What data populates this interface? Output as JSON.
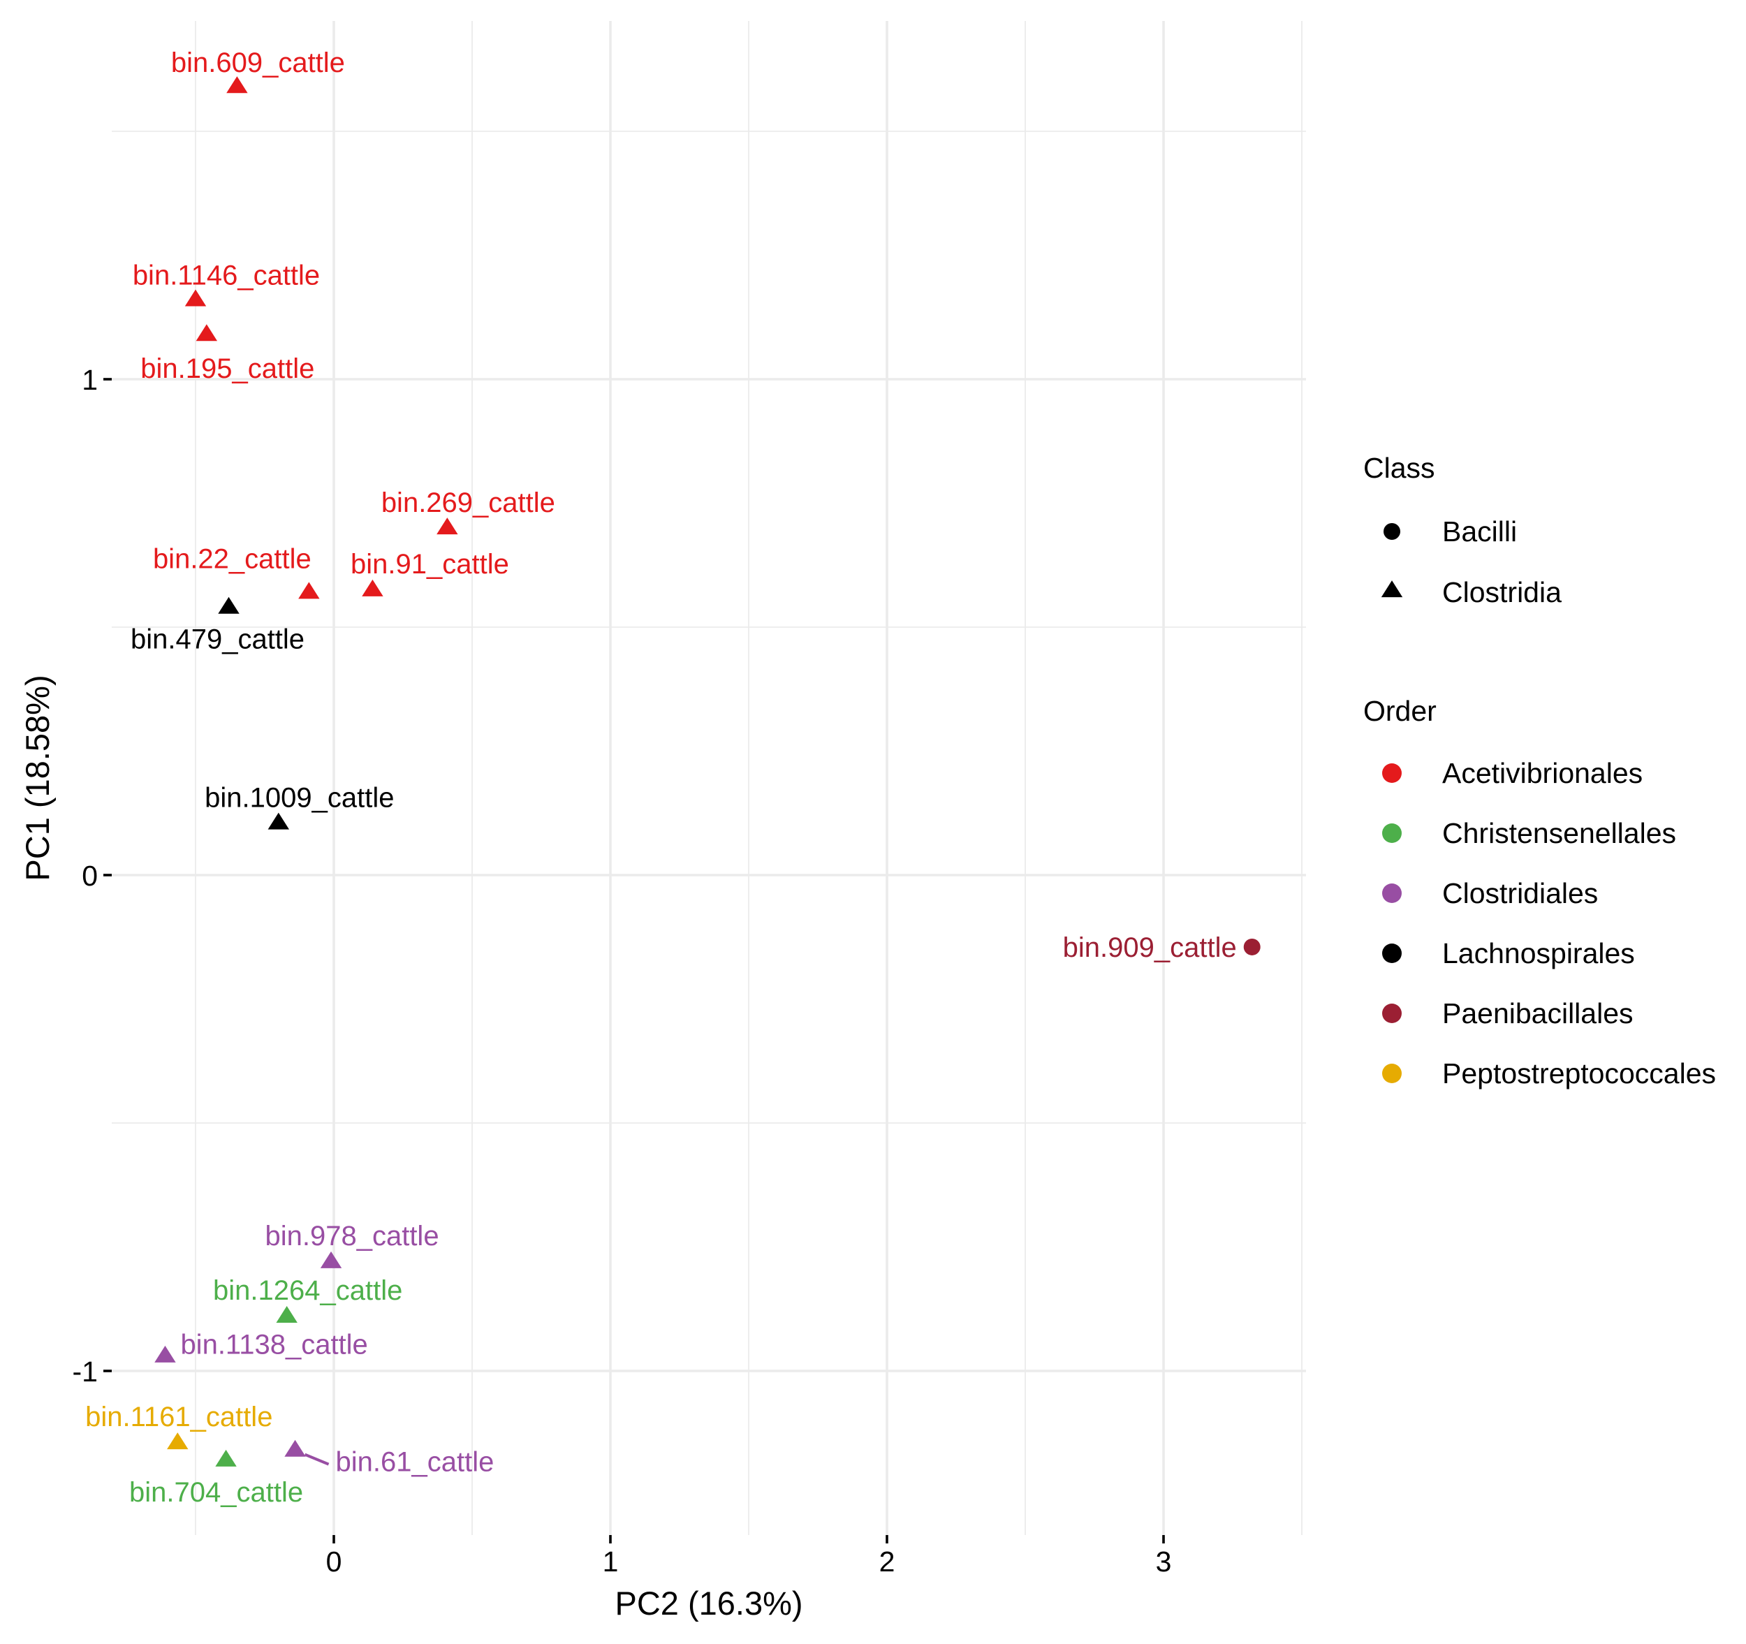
{
  "chart_data": {
    "type": "scatter",
    "title": "",
    "xlabel": "PC2 (16.3%)",
    "ylabel": "PC1 (18.58%)",
    "xlim": [
      -0.8,
      3.52
    ],
    "ylim": [
      -1.33,
      1.72
    ],
    "x_ticks": [
      0,
      1,
      2,
      3
    ],
    "x_tick_labels": [
      "0",
      "1",
      "2",
      "3"
    ],
    "y_ticks": [
      -1,
      0,
      1
    ],
    "y_tick_labels": [
      "-1",
      "0",
      "1"
    ],
    "grid": true,
    "legend_position": "right",
    "legends": [
      {
        "title": "Class",
        "kind": "shape",
        "entries": [
          {
            "label": "Bacilli",
            "shape": "circle",
            "color": "#000000"
          },
          {
            "label": "Clostridia",
            "shape": "triangle",
            "color": "#000000"
          }
        ]
      },
      {
        "title": "Order",
        "kind": "color",
        "entries": [
          {
            "label": "Acetivibrionales",
            "color": "#E41A1C"
          },
          {
            "label": "Christensenellales",
            "color": "#4DAF4A"
          },
          {
            "label": "Clostridiales",
            "color": "#984EA3"
          },
          {
            "label": "Lachnospirales",
            "color": "#000000"
          },
          {
            "label": "Paenibacillales",
            "color": "#9B1F33"
          },
          {
            "label": "Peptostreptococcales",
            "color": "#E6AB02"
          }
        ]
      }
    ],
    "points": [
      {
        "label": "bin.609_cattle",
        "x": -0.35,
        "y": 1.59,
        "class": "Clostridia",
        "order": "Acetivibrionales",
        "label_pos": "above"
      },
      {
        "label": "bin.1146_cattle",
        "x": -0.5,
        "y": 1.16,
        "class": "Clostridia",
        "order": "Acetivibrionales",
        "label_pos": "above"
      },
      {
        "label": "bin.195_cattle",
        "x": -0.46,
        "y": 1.09,
        "class": "Clostridia",
        "order": "Acetivibrionales",
        "label_pos": "below"
      },
      {
        "label": "bin.269_cattle",
        "x": 0.41,
        "y": 0.7,
        "class": "Clostridia",
        "order": "Acetivibrionales",
        "label_pos": "above"
      },
      {
        "label": "bin.22_cattle",
        "x": -0.09,
        "y": 0.57,
        "class": "Clostridia",
        "order": "Acetivibrionales",
        "label_pos": "above-left"
      },
      {
        "label": "bin.91_cattle",
        "x": 0.14,
        "y": 0.575,
        "class": "Clostridia",
        "order": "Acetivibrionales",
        "label_pos": "above"
      },
      {
        "label": "bin.479_cattle",
        "x": -0.38,
        "y": 0.54,
        "class": "Clostridia",
        "order": "Lachnospirales",
        "label_pos": "below"
      },
      {
        "label": "bin.1009_cattle",
        "x": -0.2,
        "y": 0.105,
        "class": "Clostridia",
        "order": "Lachnospirales",
        "label_pos": "above"
      },
      {
        "label": "bin.909_cattle",
        "x": 3.32,
        "y": -0.145,
        "class": "Bacilli",
        "order": "Paenibacillales",
        "label_pos": "left"
      },
      {
        "label": "bin.978_cattle",
        "x": -0.01,
        "y": -0.78,
        "class": "Clostridia",
        "order": "Clostridiales",
        "label_pos": "above"
      },
      {
        "label": "bin.1264_cattle",
        "x": -0.17,
        "y": -0.89,
        "class": "Clostridia",
        "order": "Christensenellales",
        "label_pos": "above"
      },
      {
        "label": "bin.1138_cattle",
        "x": -0.61,
        "y": -0.97,
        "class": "Clostridia",
        "order": "Clostridiales",
        "label_pos": "right"
      },
      {
        "label": "bin.1161_cattle",
        "x": -0.565,
        "y": -1.145,
        "class": "Clostridia",
        "order": "Peptostreptococcales",
        "label_pos": "above"
      },
      {
        "label": "bin.704_cattle",
        "x": -0.39,
        "y": -1.18,
        "class": "Clostridia",
        "order": "Christensenellales",
        "label_pos": "below"
      },
      {
        "label": "bin.61_cattle",
        "x": -0.14,
        "y": -1.16,
        "class": "Clostridia",
        "order": "Clostridiales",
        "label_pos": "right-segment"
      }
    ]
  }
}
